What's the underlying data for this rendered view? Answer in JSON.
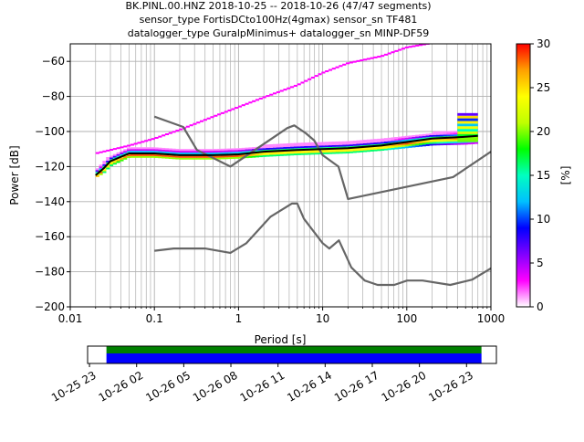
{
  "chart_data": [
    {
      "type": "heatmap",
      "title_lines": [
        "BK.PINL.00.HNZ   2018-10-25 -- 2018-10-26  (47/47 segments)",
        "sensor_type FortisDCto100Hz(4gmax) sensor_sn TF481",
        "datalogger_type GuralpMinimus+ datalogger_sn MINP-DF59"
      ],
      "xlabel": "Period [s]",
      "ylabel": "Power [dB]",
      "x_scale": "log",
      "xlim": [
        0.01,
        1000
      ],
      "ylim": [
        -200,
        -50
      ],
      "x_ticks": [
        "0.01",
        "0.1",
        "1",
        "10",
        "100",
        "1000"
      ],
      "x_tick_values": [
        0.01,
        0.1,
        1,
        10,
        100,
        1000
      ],
      "y_ticks": [
        "−200",
        "−180",
        "−160",
        "−140",
        "−120",
        "−100",
        "−80",
        "−60"
      ],
      "y_tick_values": [
        -200,
        -180,
        -160,
        -140,
        -120,
        -100,
        -80,
        -60
      ],
      "grid": true,
      "colorbar": {
        "label": "[%]",
        "range": [
          0,
          30
        ],
        "ticks": [
          "0",
          "5",
          "10",
          "15",
          "20",
          "25",
          "30"
        ],
        "tick_values": [
          0,
          5,
          10,
          15,
          20,
          25,
          30
        ],
        "colormap": [
          "#ffffff",
          "#ff00ff",
          "#8000ff",
          "#0000ff",
          "#00c0ff",
          "#00ffc0",
          "#00ff00",
          "#c0ff00",
          "#ffff00",
          "#ffa000",
          "#ff0000"
        ]
      },
      "series": [
        {
          "role": "noise-model-high",
          "color": "#666666",
          "x": [
            0.1,
            0.22,
            0.32,
            0.8,
            3.8,
            4.6,
            6.3,
            7.9,
            10,
            15.4,
            20,
            354.8,
            1000
          ],
          "y": [
            -91.5,
            -97.4,
            -110.5,
            -120,
            -98,
            -96.5,
            -101,
            -105,
            -113.5,
            -120,
            -138.5,
            -126,
            -111.5
          ]
        },
        {
          "role": "noise-model-low",
          "color": "#666666",
          "x": [
            0.1,
            0.17,
            0.4,
            0.8,
            1.24,
            2.4,
            4.3,
            5.0,
            6.0,
            10,
            12,
            15.6,
            21.9,
            31.6,
            45,
            70.8,
            101,
            154,
            328,
            600,
            1000
          ],
          "y": [
            -168,
            -166.7,
            -166.7,
            -169.2,
            -163.7,
            -148.6,
            -141.1,
            -141.1,
            -149.8,
            -163.7,
            -166.7,
            -162.1,
            -177.5,
            -185,
            -187.5,
            -187.5,
            -185,
            -185,
            -187.5,
            -184.5,
            -178
          ]
        },
        {
          "role": "mode",
          "color": "#000000",
          "x": [
            0.02,
            0.025,
            0.03,
            0.05,
            0.1,
            0.2,
            0.5,
            1,
            2,
            5,
            10,
            20,
            50,
            100,
            200,
            500,
            700
          ],
          "y": [
            -125,
            -121,
            -117,
            -112.5,
            -112.5,
            -113.5,
            -113.5,
            -113,
            -111.5,
            -110.5,
            -110,
            -109.5,
            -108,
            -106,
            -104,
            -103,
            -102.5
          ]
        },
        {
          "role": "max-envelope",
          "color": "#cc00cc",
          "x": [
            0.02,
            0.05,
            0.1,
            0.2,
            0.5,
            1,
            2,
            5,
            10,
            20,
            50,
            100,
            200,
            500,
            700
          ],
          "y": [
            -113,
            -108.5,
            -104.5,
            -99.5,
            -92,
            -86.5,
            -81,
            -74,
            -67,
            -61.5,
            -57.5,
            -52.5,
            -50,
            -50,
            -50
          ]
        },
        {
          "role": "min-envelope",
          "color": "#ff00ff",
          "x": [
            0.02,
            0.025,
            0.03,
            0.05,
            0.1,
            0.2,
            0.5,
            1,
            2,
            5,
            10,
            20,
            50,
            100,
            200,
            500,
            700
          ],
          "y": [
            -126.5,
            -124,
            -120,
            -115,
            -115,
            -116,
            -116,
            -115.5,
            -114.5,
            -113.5,
            -113,
            -112.5,
            -111,
            -109.5,
            -108,
            -107.5,
            -107
          ]
        }
      ],
      "highlight_band": {
        "x_range": [
          400,
          700
        ],
        "y_range": [
          -106,
          -90
        ]
      }
    },
    {
      "type": "timeline",
      "x_ticks": [
        "10-25 23",
        "10-26 02",
        "10-26 05",
        "10-26 08",
        "10-26 11",
        "10-26 14",
        "10-26 17",
        "10-26 20",
        "10-26 23"
      ],
      "x_tick_values": [
        -1,
        2,
        5,
        8,
        11,
        14,
        17,
        20,
        23
      ],
      "xlim": [
        -1.12,
        24.9
      ],
      "coverage": {
        "start": 0.08,
        "end": 23.95
      },
      "colors": {
        "data": "#008000",
        "gaps": "#0000ff"
      }
    }
  ]
}
